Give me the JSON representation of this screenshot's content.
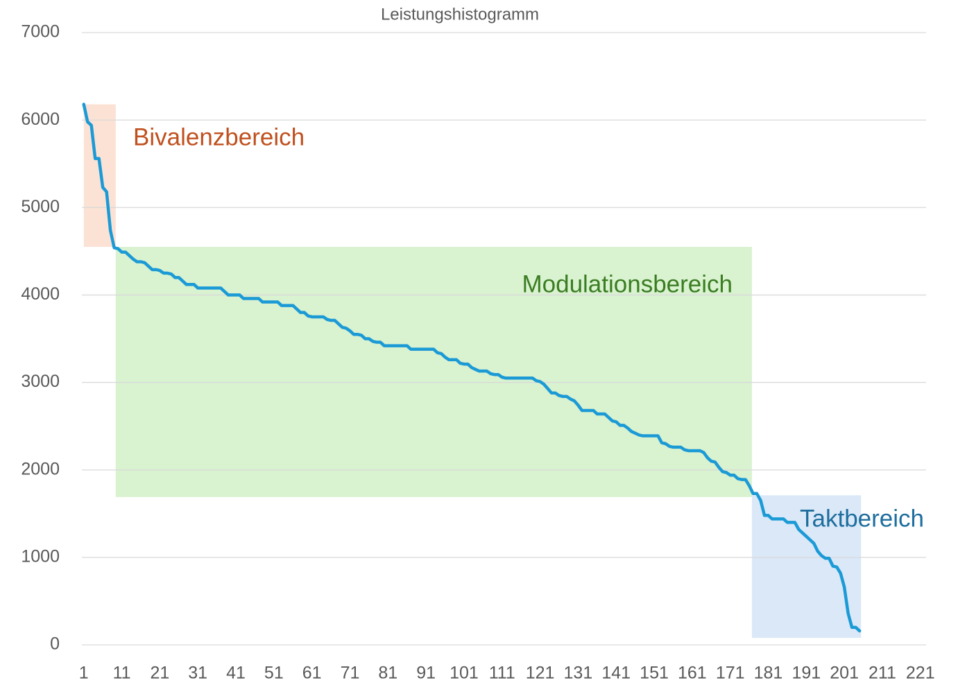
{
  "chart_data": {
    "type": "line",
    "title": "Leistungshistogramm",
    "categories": [
      "1",
      null,
      null,
      null,
      null,
      null,
      null,
      null,
      null,
      null,
      "11",
      null,
      null,
      null,
      null,
      null,
      null,
      null,
      null,
      null,
      "21",
      null,
      null,
      null,
      null,
      null,
      null,
      null,
      null,
      null,
      "31",
      null,
      null,
      null,
      null,
      null,
      null,
      null,
      null,
      null,
      "41",
      null,
      null,
      null,
      null,
      null,
      null,
      null,
      null,
      null,
      "51",
      null,
      null,
      null,
      null,
      null,
      null,
      null,
      null,
      null,
      "61",
      null,
      null,
      null,
      null,
      null,
      null,
      null,
      null,
      null,
      "71",
      null,
      null,
      null,
      null,
      null,
      null,
      null,
      null,
      null,
      "81",
      null,
      null,
      null,
      null,
      null,
      null,
      null,
      null,
      null,
      "91",
      null,
      null,
      null,
      null,
      null,
      null,
      null,
      null,
      null,
      "101",
      null,
      null,
      null,
      null,
      null,
      null,
      null,
      null,
      null,
      "111",
      null,
      null,
      null,
      null,
      null,
      null,
      null,
      null,
      null,
      "121",
      null,
      null,
      null,
      null,
      null,
      null,
      null,
      null,
      null,
      "131",
      null,
      null,
      null,
      null,
      null,
      null,
      null,
      null,
      null,
      "141",
      null,
      null,
      null,
      null,
      null,
      null,
      null,
      null,
      null,
      "151",
      null,
      null,
      null,
      null,
      null,
      null,
      null,
      null,
      null,
      "161",
      null,
      null,
      null,
      null,
      null,
      null,
      null,
      null,
      null,
      "171",
      null,
      null,
      null,
      null,
      null,
      null,
      null,
      null,
      null,
      "181",
      null,
      null,
      null,
      null,
      null,
      null,
      null,
      null,
      null,
      "191",
      null,
      null,
      null,
      null,
      null,
      null,
      null,
      null,
      null,
      "201",
      null,
      null,
      null,
      null,
      null,
      null,
      null,
      null,
      null,
      "211",
      null,
      null,
      null,
      null,
      null,
      null,
      null,
      null,
      null,
      "221",
      null
    ],
    "series": [
      {
        "color": "#1b9ad6",
        "values": [
          6180,
          5980,
          5940,
          5560,
          5560,
          5230,
          5180,
          4740,
          4540,
          4530,
          4490,
          4490,
          4450,
          4410,
          4380,
          4380,
          4370,
          4330,
          4290,
          4290,
          4280,
          4250,
          4250,
          4240,
          4200,
          4200,
          4160,
          4120,
          4120,
          4120,
          4080,
          4080,
          4080,
          4080,
          4080,
          4080,
          4080,
          4040,
          4000,
          4000,
          4000,
          4000,
          3960,
          3960,
          3960,
          3960,
          3960,
          3920,
          3920,
          3920,
          3920,
          3920,
          3880,
          3880,
          3880,
          3880,
          3840,
          3800,
          3800,
          3760,
          3750,
          3750,
          3750,
          3750,
          3720,
          3710,
          3710,
          3670,
          3630,
          3620,
          3590,
          3550,
          3550,
          3540,
          3500,
          3500,
          3470,
          3460,
          3460,
          3420,
          3420,
          3420,
          3420,
          3420,
          3420,
          3420,
          3380,
          3380,
          3380,
          3380,
          3380,
          3380,
          3380,
          3340,
          3330,
          3290,
          3260,
          3260,
          3260,
          3220,
          3210,
          3210,
          3170,
          3150,
          3130,
          3130,
          3130,
          3100,
          3090,
          3090,
          3060,
          3050,
          3050,
          3050,
          3050,
          3050,
          3050,
          3050,
          3050,
          3020,
          3010,
          2980,
          2930,
          2880,
          2880,
          2850,
          2840,
          2840,
          2810,
          2790,
          2740,
          2680,
          2680,
          2680,
          2680,
          2640,
          2640,
          2640,
          2600,
          2560,
          2550,
          2510,
          2510,
          2480,
          2440,
          2420,
          2400,
          2390,
          2390,
          2390,
          2390,
          2390,
          2310,
          2300,
          2270,
          2260,
          2260,
          2260,
          2230,
          2220,
          2220,
          2220,
          2220,
          2200,
          2140,
          2100,
          2090,
          2030,
          1980,
          1970,
          1940,
          1940,
          1900,
          1890,
          1890,
          1820,
          1730,
          1730,
          1650,
          1480,
          1480,
          1440,
          1440,
          1440,
          1440,
          1400,
          1400,
          1400,
          1320,
          1280,
          1240,
          1200,
          1160,
          1070,
          1020,
          990,
          990,
          900,
          890,
          820,
          660,
          360,
          200,
          200,
          160,
          null,
          null,
          null,
          null,
          null,
          null,
          null,
          null,
          null,
          null,
          null,
          null,
          null,
          null,
          null,
          null,
          null
        ]
      }
    ],
    "ylim": [
      0,
      7000
    ],
    "yticks": [
      0,
      1000,
      2000,
      3000,
      4000,
      5000,
      6000,
      7000
    ],
    "grid": true,
    "regions": [
      {
        "label": "Bivalenzbereich",
        "color": "#fbe2d5",
        "label_color": "#c0501e",
        "x": [
          1,
          9.4
        ],
        "y": [
          4550,
          6180
        ]
      },
      {
        "label": "Modulationsbereich",
        "color": "#d9f2d0",
        "label_color": "#3a7d22",
        "x": [
          9.4,
          176.7
        ],
        "y": [
          1690,
          4550
        ]
      },
      {
        "label": "Taktbereich",
        "color": "#dae8f8",
        "label_color": "#1e6e9e",
        "x": [
          176.7,
          205.4
        ],
        "y": [
          80,
          1710
        ]
      }
    ]
  }
}
